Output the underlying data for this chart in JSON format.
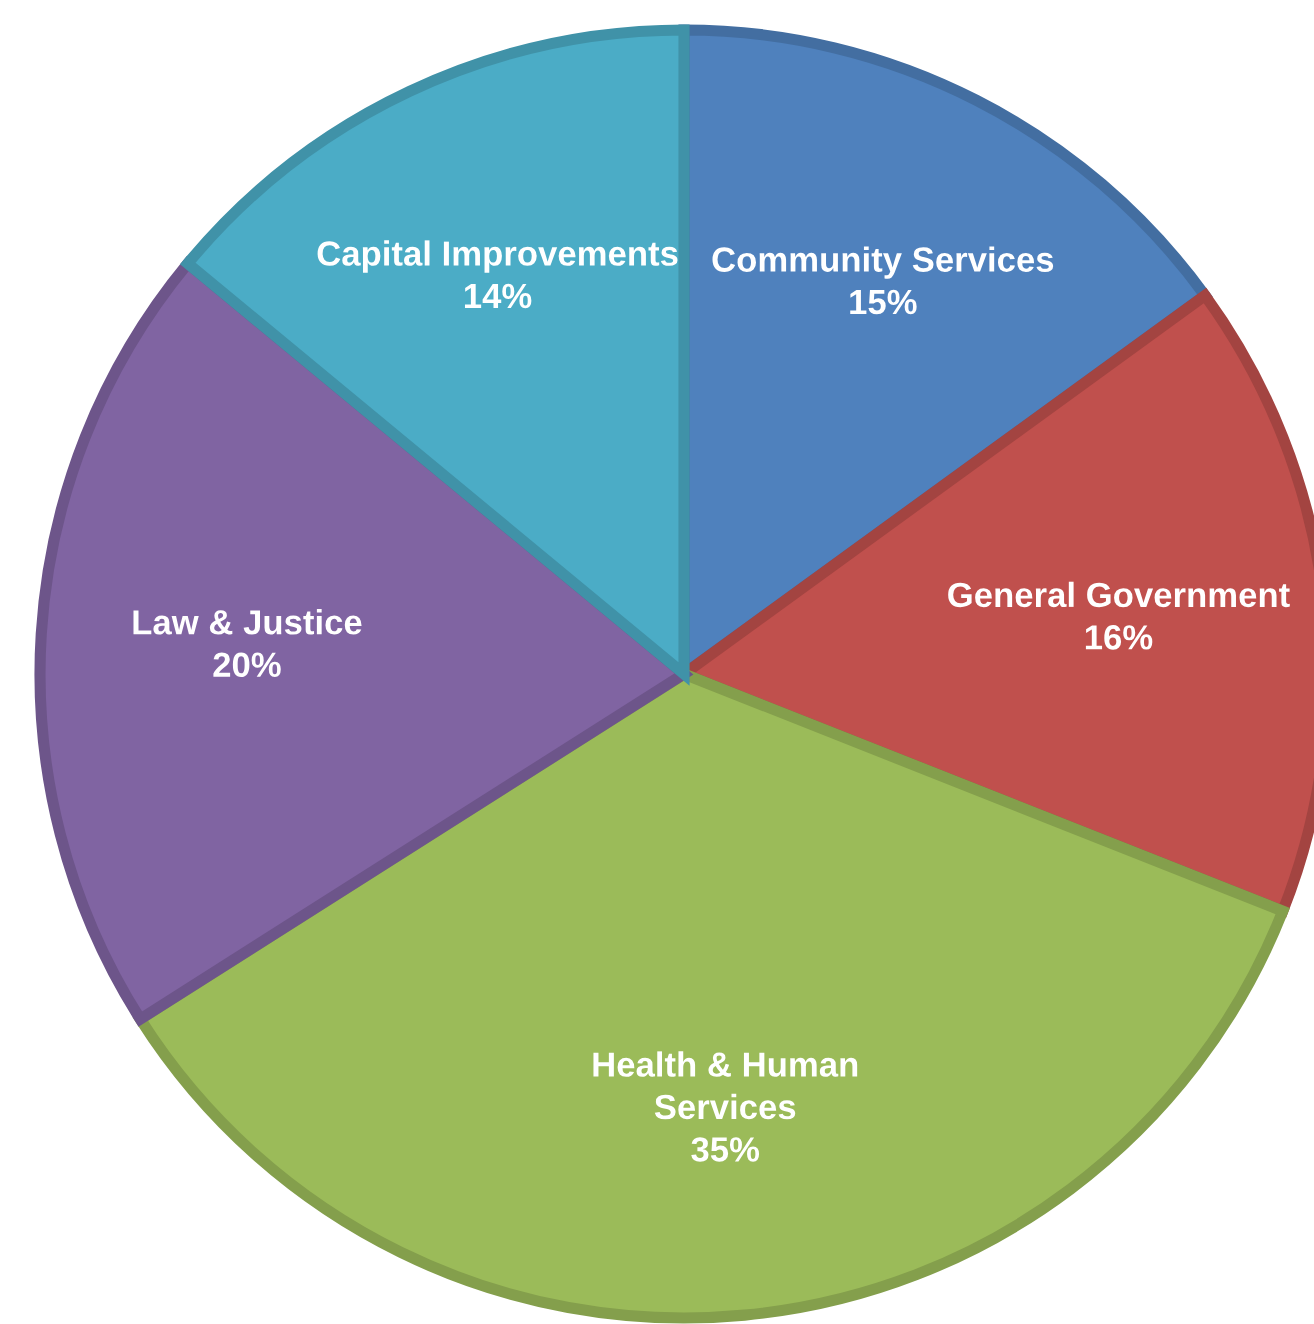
{
  "chart_data": {
    "type": "pie",
    "categories": [
      "Community Services",
      "General Government",
      "Health & Human Services",
      "Law & Justice",
      "Capital Improvements"
    ],
    "values": [
      15,
      16,
      35,
      20,
      14
    ],
    "value_labels": [
      "15%",
      "16%",
      "35%",
      "20%",
      "14%"
    ],
    "colors": [
      "#4f81bd",
      "#c0504d",
      "#9bbb59",
      "#8064a2",
      "#4bacc6"
    ],
    "legend": false
  }
}
